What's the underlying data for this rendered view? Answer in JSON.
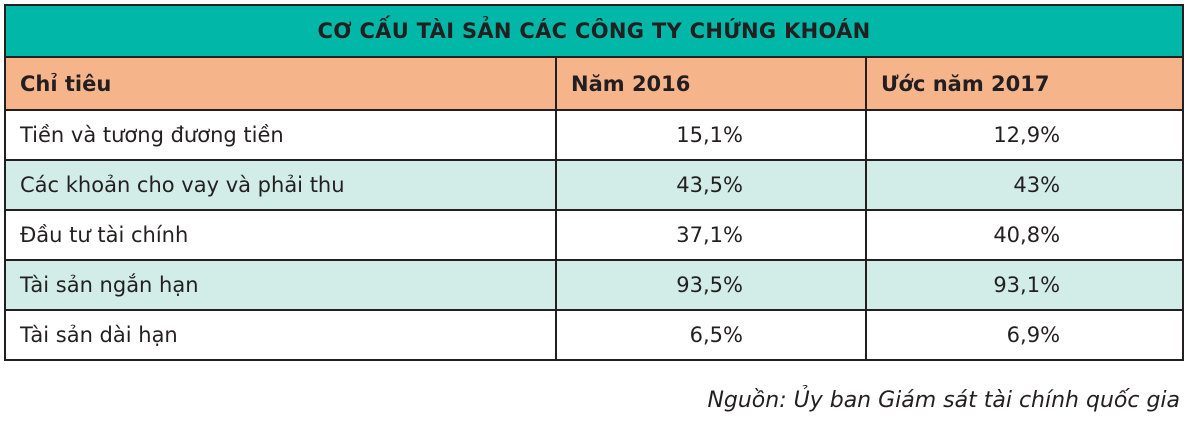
{
  "table": {
    "title": "CƠ CẤU TÀI SẢN CÁC CÔNG TY CHỨNG KHOÁN",
    "header": [
      "Chỉ tiêu",
      "Năm 2016",
      "Ước năm 2017"
    ],
    "rows": [
      [
        "Tiền và tương đương tiền",
        "15,1%",
        "12,9%"
      ],
      [
        "Các khoản cho vay và phải thu",
        "43,5%",
        "43%"
      ],
      [
        "Đầu tư tài chính",
        "37,1%",
        "40,8%"
      ],
      [
        "Tài sản ngắn hạn",
        "93,5%",
        "93,1%"
      ],
      [
        "Tài sản dài hạn",
        "6,5%",
        "6,9%"
      ]
    ],
    "source": "Nguồn: Ủy ban Giám sát tài chính quốc gia"
  }
}
